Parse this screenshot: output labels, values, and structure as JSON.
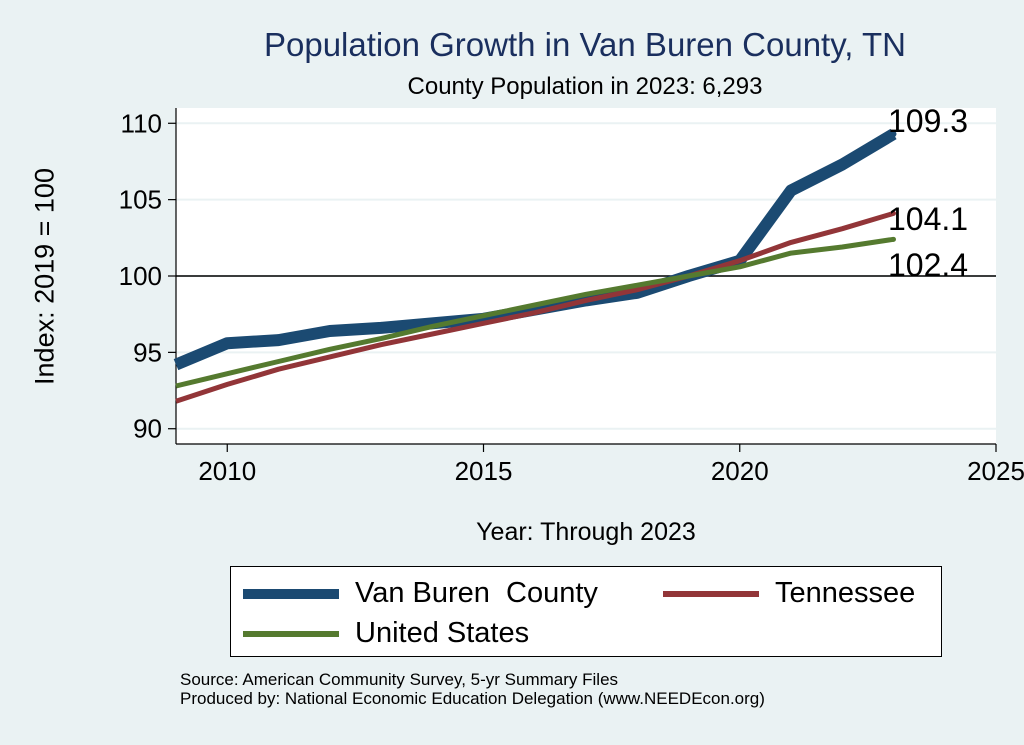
{
  "chart_data": {
    "type": "line",
    "title": "Population Growth in Van Buren County, TN",
    "subtitle": "County Population in 2023: 6,293",
    "xlabel": "Year: Through 2023",
    "ylabel": "Index: 2019 = 100",
    "xlim": [
      2009,
      2025
    ],
    "ylim": [
      89,
      111
    ],
    "xticks": [
      2010,
      2015,
      2020,
      2025
    ],
    "yticks": [
      90,
      95,
      100,
      105,
      110
    ],
    "reference_line": 100,
    "grid": true,
    "legend_position": "bottom",
    "series": [
      {
        "name": "Van Buren  County",
        "color": "#1b4a72",
        "x": [
          2009,
          2010,
          2011,
          2012,
          2013,
          2014,
          2015,
          2016,
          2017,
          2018,
          2019,
          2020,
          2021,
          2022,
          2023
        ],
        "values": [
          94.2,
          95.6,
          95.8,
          96.4,
          96.6,
          96.9,
          97.2,
          97.8,
          98.4,
          98.9,
          100.0,
          101.0,
          105.6,
          107.3,
          109.3
        ],
        "end_label": "109.3"
      },
      {
        "name": "Tennessee",
        "color": "#923538",
        "x": [
          2009,
          2010,
          2011,
          2012,
          2013,
          2014,
          2015,
          2016,
          2017,
          2018,
          2019,
          2020,
          2021,
          2022,
          2023
        ],
        "values": [
          91.8,
          92.9,
          93.9,
          94.7,
          95.5,
          96.2,
          96.9,
          97.6,
          98.4,
          99.1,
          100.0,
          101.0,
          102.2,
          103.1,
          104.1
        ],
        "end_label": "104.1"
      },
      {
        "name": "United States",
        "color": "#557a2f",
        "x": [
          2009,
          2010,
          2011,
          2012,
          2013,
          2014,
          2015,
          2016,
          2017,
          2018,
          2019,
          2020,
          2021,
          2022,
          2023
        ],
        "values": [
          92.8,
          93.6,
          94.4,
          95.2,
          95.9,
          96.7,
          97.4,
          98.1,
          98.8,
          99.4,
          100.0,
          100.6,
          101.5,
          101.9,
          102.4
        ],
        "end_label": "102.4"
      }
    ]
  },
  "footer": {
    "source": "Source: American Community Survey, 5-yr Summary Files",
    "producer": "Produced by: National Economic Education Delegation (www.NEEDEcon.org)"
  }
}
